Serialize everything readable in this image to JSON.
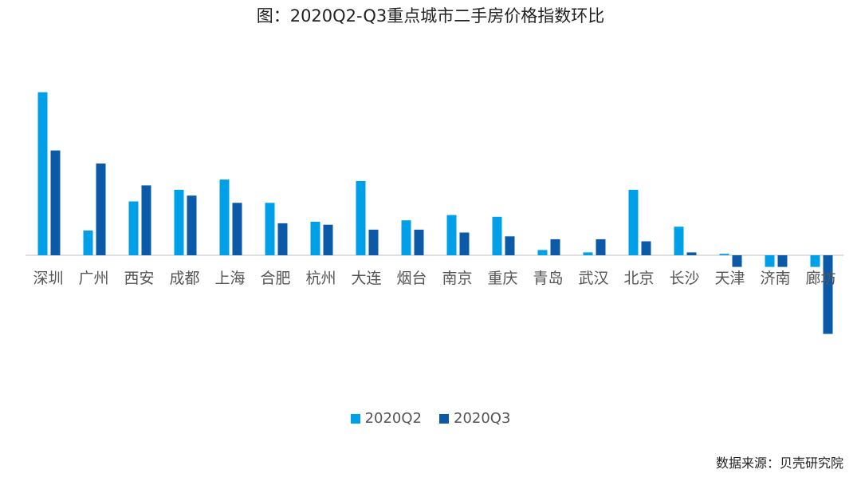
{
  "title": "图：2020Q2-Q3重点城市二手房价格指数环比",
  "source": "数据来源：贝壳研究院",
  "colors": {
    "q2": "#00a0e9",
    "q3": "#0a5aa8",
    "axis": "#bfbfbf"
  },
  "chart_data": {
    "type": "bar",
    "categories": [
      "深圳",
      "广州",
      "西安",
      "成都",
      "上海",
      "合肥",
      "杭州",
      "大连",
      "烟台",
      "南京",
      "重庆",
      "青岛",
      "武汉",
      "北京",
      "长沙",
      "天津",
      "济南",
      "廊坊"
    ],
    "series": [
      {
        "name": "2020Q2",
        "values": [
          5.6,
          0.85,
          1.85,
          2.25,
          2.6,
          1.8,
          1.15,
          2.55,
          1.2,
          1.38,
          1.32,
          0.18,
          0.1,
          2.25,
          0.98,
          0.05,
          -0.4,
          -0.4
        ]
      },
      {
        "name": "2020Q3",
        "values": [
          3.6,
          3.15,
          2.4,
          2.05,
          1.8,
          1.1,
          1.05,
          0.88,
          0.88,
          0.78,
          0.65,
          0.55,
          0.55,
          0.48,
          0.1,
          -0.4,
          -0.4,
          -2.7
        ]
      }
    ],
    "legend_position": "bottom",
    "grid": false,
    "ylim": [
      -3.6,
      5.9
    ]
  }
}
